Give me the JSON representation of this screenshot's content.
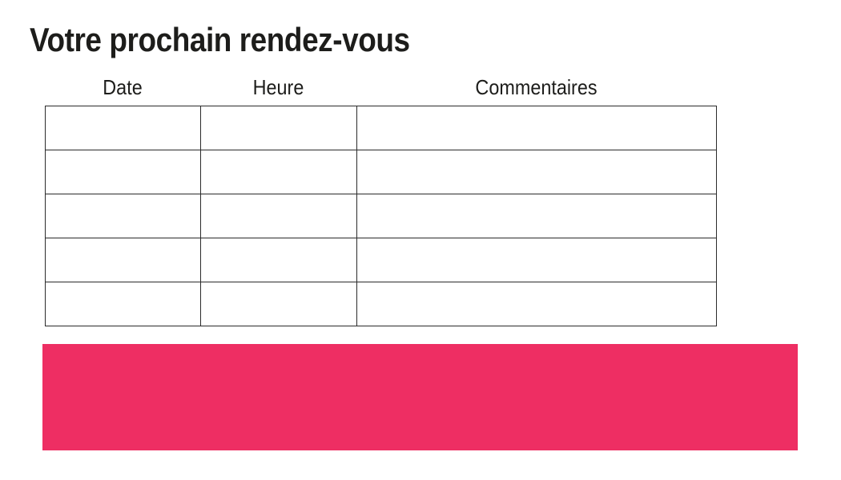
{
  "title": "Votre prochain rendez-vous",
  "table": {
    "headers": [
      "Date",
      "Heure",
      "Commentaires"
    ],
    "rows": [
      [
        "",
        "",
        ""
      ],
      [
        "",
        "",
        ""
      ],
      [
        "",
        "",
        ""
      ],
      [
        "",
        "",
        ""
      ],
      [
        "",
        "",
        ""
      ]
    ]
  },
  "colors": {
    "accent_pink": "#EE2E63",
    "table_border": "#2b2b2b",
    "text": "#1d1d1b"
  }
}
